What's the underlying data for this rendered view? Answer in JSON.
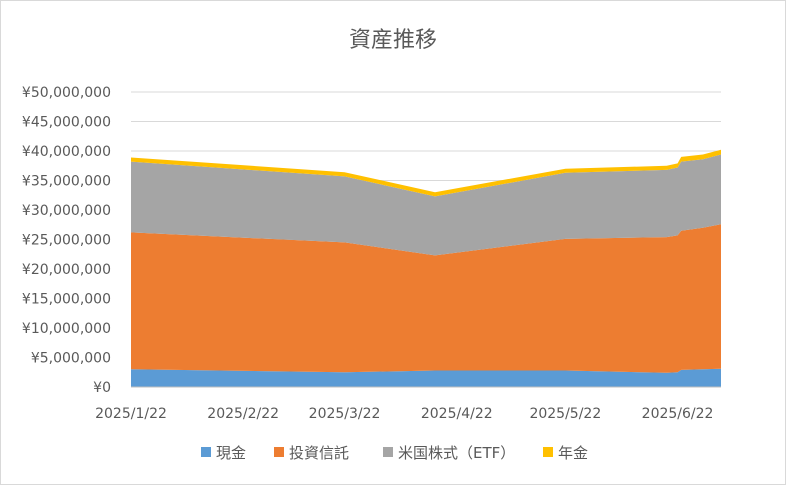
{
  "chart_data": {
    "type": "area",
    "stacked": true,
    "title": "資産推移",
    "xlabel": "",
    "ylabel": "",
    "ylim": [
      0,
      50000000
    ],
    "ytick_step": 5000000,
    "y_ticks": [
      "¥0",
      "¥5,000,000",
      "¥10,000,000",
      "¥15,000,000",
      "¥20,000,000",
      "¥25,000,000",
      "¥30,000,000",
      "¥35,000,000",
      "¥40,000,000",
      "¥45,000,000",
      "¥50,000,000"
    ],
    "x_ticks": [
      "2025/1/22",
      "2025/2/22",
      "2025/3/22",
      "2025/4/22",
      "2025/5/22",
      "2025/6/22"
    ],
    "x": [
      "2025/1/22",
      "2025/3/22",
      "2025/4/16",
      "2025/5/22",
      "2025/6/19",
      "2025/6/22",
      "2025/6/23",
      "2025/6/29",
      "2025/7/4"
    ],
    "series": [
      {
        "name": "現金",
        "color": "#5B9BD5",
        "values": [
          3000000,
          2500000,
          2800000,
          2800000,
          2400000,
          2500000,
          2900000,
          3000000,
          3100000
        ]
      },
      {
        "name": "投資信託",
        "color": "#ED7D31",
        "values": [
          23200000,
          22000000,
          19500000,
          22300000,
          23000000,
          23200000,
          23600000,
          24000000,
          24500000
        ]
      },
      {
        "name": "米国株式（ETF）",
        "color": "#A5A5A5",
        "values": [
          12000000,
          11200000,
          10000000,
          11200000,
          11400000,
          11500000,
          11700000,
          11600000,
          11800000
        ]
      },
      {
        "name": "年金",
        "color": "#FFC000",
        "values": [
          700000,
          700000,
          700000,
          700000,
          700000,
          700000,
          800000,
          800000,
          800000
        ]
      }
    ],
    "grid": true,
    "legend_position": "bottom"
  }
}
